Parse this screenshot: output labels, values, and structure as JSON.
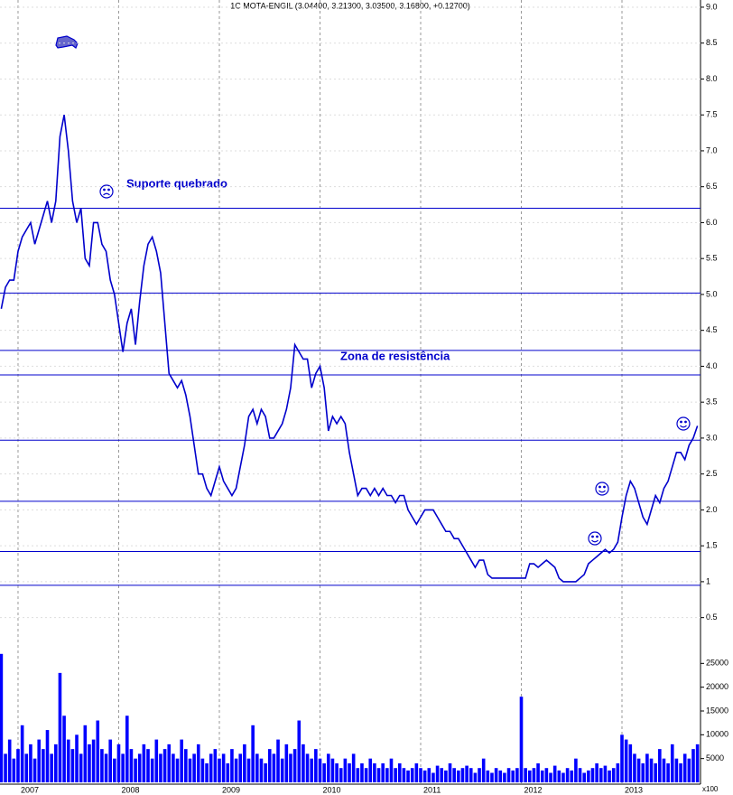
{
  "chart_data": [
    {
      "type": "line",
      "title": "1C MOTA-ENGIL (3.04400, 3.21300, 3.03500, 3.16800, +0.12700)",
      "color": "#0000cc",
      "annotations": [
        "Suporte quebrado",
        "Zona de resistência"
      ],
      "levels": [
        6.2,
        5.02,
        4.22,
        3.88,
        2.97,
        2.12,
        1.42,
        0.95
      ],
      "categories": [
        null,
        null,
        null,
        null,
        "2007",
        null,
        null,
        null,
        null,
        null,
        null,
        null,
        null,
        null,
        null,
        null,
        null,
        null,
        null,
        null,
        null,
        null,
        null,
        null,
        null,
        null,
        null,
        null,
        "2008",
        null,
        null,
        null,
        null,
        null,
        null,
        null,
        null,
        null,
        null,
        null,
        null,
        null,
        null,
        null,
        null,
        null,
        null,
        null,
        null,
        null,
        null,
        null,
        "2009",
        null,
        null,
        null,
        null,
        null,
        null,
        null,
        null,
        null,
        null,
        null,
        null,
        null,
        null,
        null,
        null,
        null,
        null,
        null,
        null,
        null,
        null,
        null,
        "2010",
        null,
        null,
        null,
        null,
        null,
        null,
        null,
        null,
        null,
        null,
        null,
        null,
        null,
        null,
        null,
        null,
        null,
        null,
        null,
        null,
        null,
        null,
        null,
        "2011",
        null,
        null,
        null,
        null,
        null,
        null,
        null,
        null,
        null,
        null,
        null,
        null,
        null,
        null,
        null,
        null,
        null,
        null,
        null,
        null,
        null,
        null,
        null,
        "2012",
        null,
        null,
        null,
        null,
        null,
        null,
        null,
        null,
        null,
        null,
        null,
        null,
        null,
        null,
        null,
        null,
        null,
        null,
        null,
        null,
        null,
        null,
        null,
        "2013",
        null,
        null,
        null,
        null,
        null,
        null,
        null,
        null,
        null,
        null,
        null,
        null,
        null,
        null,
        null,
        null,
        null,
        null
      ],
      "values": [
        4.8,
        5.1,
        5.2,
        5.2,
        5.6,
        5.8,
        5.9,
        6.0,
        5.7,
        5.9,
        6.1,
        6.3,
        6.0,
        6.3,
        7.2,
        7.5,
        7.0,
        6.3,
        6.0,
        6.2,
        5.5,
        5.4,
        6.0,
        6.0,
        5.7,
        5.6,
        5.2,
        5.0,
        4.6,
        4.2,
        4.6,
        4.8,
        4.3,
        4.9,
        5.4,
        5.7,
        5.8,
        5.6,
        5.3,
        4.6,
        3.9,
        3.8,
        3.7,
        3.8,
        3.6,
        3.3,
        2.9,
        2.5,
        2.5,
        2.3,
        2.2,
        2.4,
        2.6,
        2.4,
        2.3,
        2.2,
        2.3,
        2.6,
        2.9,
        3.3,
        3.4,
        3.2,
        3.4,
        3.3,
        3.0,
        3.0,
        3.1,
        3.2,
        3.4,
        3.7,
        4.3,
        4.2,
        4.1,
        4.1,
        3.7,
        3.9,
        4.0,
        3.7,
        3.1,
        3.3,
        3.2,
        3.3,
        3.2,
        2.8,
        2.5,
        2.2,
        2.3,
        2.3,
        2.2,
        2.3,
        2.2,
        2.3,
        2.2,
        2.2,
        2.1,
        2.2,
        2.2,
        2.0,
        1.9,
        1.8,
        1.9,
        2.0,
        2.0,
        2.0,
        1.9,
        1.8,
        1.7,
        1.7,
        1.6,
        1.6,
        1.5,
        1.4,
        1.3,
        1.2,
        1.3,
        1.3,
        1.1,
        1.05,
        1.05,
        1.05,
        1.05,
        1.05,
        1.05,
        1.05,
        1.05,
        1.05,
        1.25,
        1.25,
        1.2,
        1.25,
        1.3,
        1.25,
        1.2,
        1.05,
        1.0,
        1.0,
        1.0,
        1.0,
        1.05,
        1.1,
        1.25,
        1.3,
        1.35,
        1.4,
        1.45,
        1.4,
        1.45,
        1.55,
        1.9,
        2.2,
        2.4,
        2.3,
        2.1,
        1.9,
        1.8,
        2.0,
        2.2,
        2.1,
        2.3,
        2.4,
        2.6,
        2.8,
        2.8,
        2.7,
        2.9,
        3.0,
        3.17
      ],
      "ylim": [
        0.4,
        9.1
      ],
      "yticks": [
        0.5,
        1.0,
        {
          "value": 1.5,
          "label": "1.5"
        },
        {
          "value": 2,
          "label": "2.0"
        },
        2.5,
        {
          "value": 3,
          "label": "3.0"
        },
        3.5,
        {
          "value": 4,
          "label": "4.0"
        },
        4.5,
        {
          "value": 5,
          "label": "5.0"
        },
        5.5,
        {
          "value": 6,
          "label": "6.0"
        },
        6.5,
        {
          "value": 7,
          "label": "7.0"
        },
        7.5,
        {
          "value": 8,
          "label": "8.0"
        },
        8.5,
        {
          "value": 9,
          "label": "9.0"
        }
      ],
      "grid": true
    },
    {
      "type": "bar",
      "color": "#0000ff",
      "unit_label": "x100",
      "values": [
        27000,
        6000,
        9000,
        5000,
        7000,
        12000,
        6000,
        8000,
        5000,
        9000,
        7000,
        11000,
        6000,
        8000,
        23000,
        14000,
        9000,
        7000,
        10000,
        6000,
        12000,
        8000,
        9000,
        13000,
        7000,
        6000,
        9000,
        5000,
        8000,
        6000,
        14000,
        7000,
        5000,
        6000,
        8000,
        7000,
        5000,
        9000,
        6000,
        7000,
        8000,
        6000,
        5000,
        9000,
        7000,
        5000,
        6000,
        8000,
        5000,
        4000,
        6000,
        7000,
        5000,
        6000,
        4000,
        7000,
        5000,
        6000,
        8000,
        5000,
        12000,
        6000,
        5000,
        4000,
        7000,
        6000,
        9000,
        5000,
        8000,
        6000,
        7000,
        13000,
        8000,
        6000,
        5000,
        7000,
        5000,
        4000,
        6000,
        5000,
        4000,
        3000,
        5000,
        4000,
        6000,
        3000,
        4000,
        3000,
        5000,
        4000,
        3000,
        4000,
        3000,
        5000,
        3000,
        4000,
        3000,
        2500,
        3000,
        4000,
        3000,
        2500,
        3000,
        2000,
        3500,
        3000,
        2500,
        4000,
        3000,
        2500,
        3000,
        3500,
        3000,
        2000,
        3000,
        5000,
        2500,
        2000,
        3000,
        2500,
        2000,
        3000,
        2500,
        3000,
        18000,
        3000,
        2500,
        3000,
        4000,
        2500,
        3000,
        2000,
        3500,
        2500,
        2000,
        3000,
        2500,
        5000,
        3000,
        2000,
        2500,
        3000,
        4000,
        3000,
        3500,
        2500,
        3000,
        4000,
        10000,
        9000,
        8000,
        6000,
        5000,
        4000,
        6000,
        5000,
        4000,
        7000,
        5000,
        4000,
        8000,
        5000,
        4000,
        6000,
        5000,
        7000,
        8000
      ],
      "ylim": [
        0,
        30000
      ],
      "yticks": [
        5000,
        10000,
        15000,
        20000,
        25000
      ]
    }
  ]
}
